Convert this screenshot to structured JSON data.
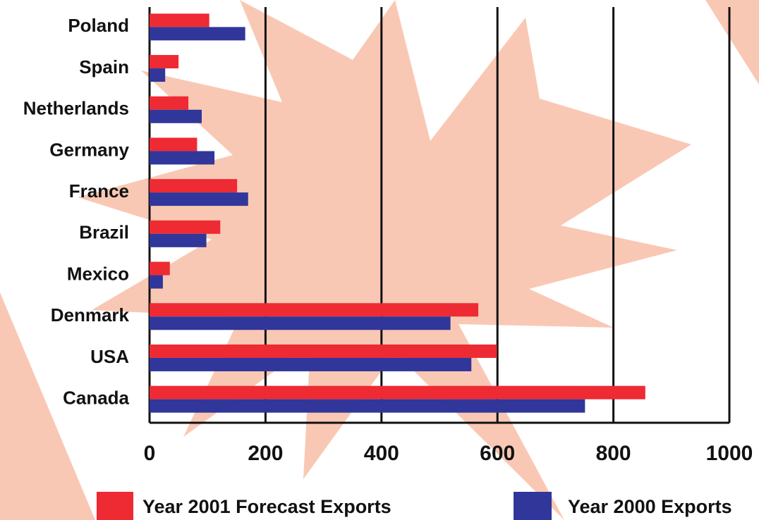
{
  "chart_data": {
    "type": "hbar",
    "categories": [
      "Poland",
      "Spain",
      "Netherlands",
      "Germany",
      "France",
      "Brazil",
      "Mexico",
      "Denmark",
      "USA",
      "Canada"
    ],
    "series": [
      {
        "name": "Year 2001 Forecast Exports",
        "color": "#ee2a33",
        "values": [
          103,
          50,
          67,
          82,
          151,
          122,
          35,
          567,
          599,
          855
        ]
      },
      {
        "name": "Year 2000 Exports",
        "color": "#30369a",
        "values": [
          165,
          27,
          90,
          112,
          170,
          98,
          23,
          519,
          555,
          751
        ]
      }
    ],
    "xlim": [
      0,
      1000
    ],
    "xticks": [
      0,
      200,
      400,
      600,
      800,
      1000
    ],
    "grid": true
  }
}
